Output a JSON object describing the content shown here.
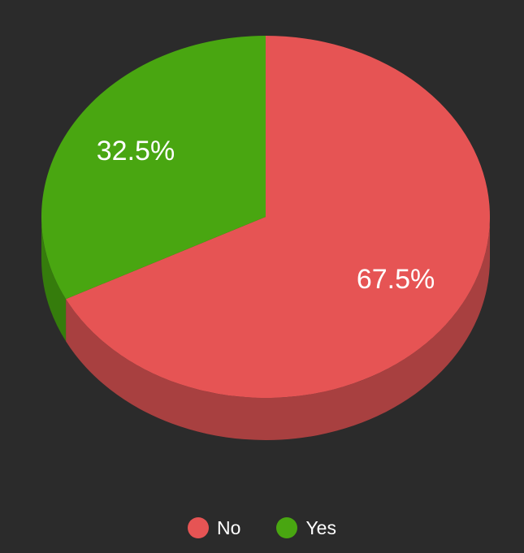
{
  "chart_data": {
    "type": "pie",
    "style": "3d",
    "slices": [
      {
        "label": "No",
        "value": 67.5,
        "display": "67.5%",
        "color": "#e65454",
        "side_color": "#a84040"
      },
      {
        "label": "Yes",
        "value": 32.5,
        "display": "32.5%",
        "color": "#49a611",
        "side_color": "#357c0c"
      }
    ],
    "legend": {
      "position": "bottom"
    },
    "background": "#2b2b2b",
    "label_color": "#ffffff"
  }
}
